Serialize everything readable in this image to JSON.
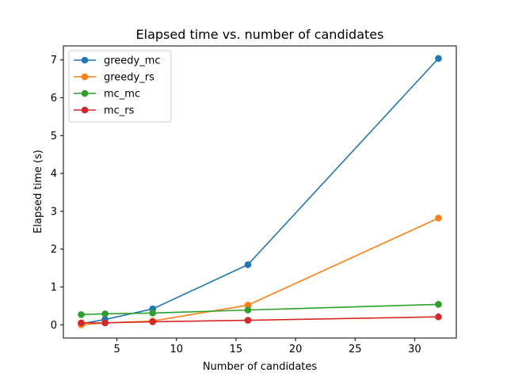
{
  "chart_data": {
    "type": "line",
    "title": "Elapsed time vs. number of candidates",
    "xlabel": "Number of candidates",
    "ylabel": "Elapsed time (s)",
    "x": [
      2,
      4,
      8,
      16,
      32
    ],
    "xlim": [
      0.5,
      33.5
    ],
    "ylim": [
      -0.35,
      7.37
    ],
    "xticks": [
      5,
      10,
      15,
      20,
      25,
      30
    ],
    "yticks": [
      0,
      1,
      2,
      3,
      4,
      5,
      6,
      7
    ],
    "grid": false,
    "legend_position": "top-left",
    "series": [
      {
        "name": "greedy_mc",
        "color": "#1f77b4",
        "values": [
          0.03,
          0.14,
          0.42,
          1.59,
          7.04
        ]
      },
      {
        "name": "greedy_rs",
        "color": "#ff7f0e",
        "values": [
          0.0,
          0.05,
          0.1,
          0.52,
          2.82
        ]
      },
      {
        "name": "mc_mc",
        "color": "#2ca02c",
        "values": [
          0.27,
          0.29,
          0.31,
          0.39,
          0.54
        ]
      },
      {
        "name": "mc_rs",
        "color": "#d62728",
        "values": [
          0.05,
          0.05,
          0.08,
          0.12,
          0.21
        ]
      }
    ]
  }
}
